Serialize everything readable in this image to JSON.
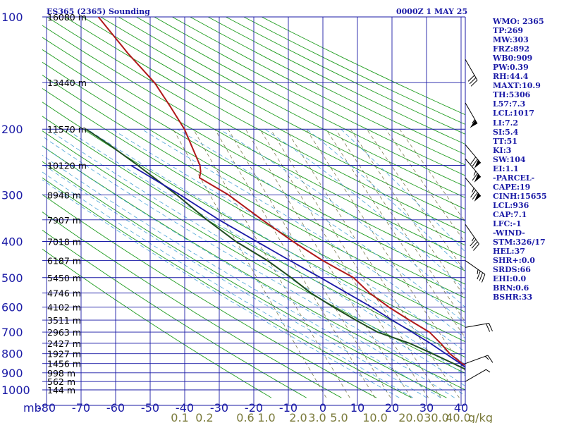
{
  "header": {
    "station": "ES365 (2365) Sounding",
    "time": "0000Z  1 MAY 25"
  },
  "colors": {
    "grid": "#1a1aa6",
    "dry_adiabat": "#1f9c1f",
    "moist_adiabat": "#4aa3d6",
    "mixing_ratio": "#6b6b3a",
    "temperature": "#b01a1a",
    "dewpoint": "#1f4d1f",
    "parcel": "#1a1aa6",
    "text": "#1a1aa6",
    "mixing_label": "#7a7a3a"
  },
  "indices": [
    "WMO: 2365",
    "TP:269",
    "MW:303",
    "FRZ:892",
    "WB0:909",
    "PW:0.39",
    "RH:44.4",
    "MAXT:10.9",
    "TH:5306",
    "L57:7.3",
    "LCL:1017",
    "LI:7.2",
    "SI:5.4",
    "TT:51",
    "KI:3",
    "SW:104",
    "EI:1.1",
    "-PARCEL-",
    "CAPE:19",
    "CINH:15655",
    "LCL:936",
    "CAP:7.1",
    "LFC:-1",
    "-WIND-",
    "STM:326/17",
    "HEL:37",
    "SHR+:0.0",
    "SRDS:66",
    "EHI:0.0",
    "BRN:0.6",
    "BSHR:33"
  ],
  "chart_data": {
    "type": "skew-t",
    "title": "ES365 (2365) Sounding",
    "subtitle": "0000Z  1 MAY 25",
    "pressure_axis": {
      "unit": "mb",
      "ticks": [
        "100",
        "200",
        "300",
        "400",
        "500",
        "600",
        "700",
        "800",
        "900",
        "1000"
      ],
      "range": [
        1000,
        100
      ],
      "scale": "log"
    },
    "temperature_axis": {
      "ticks": [
        "-80",
        "-70",
        "-60",
        "-50",
        "-40",
        "-30",
        "-20",
        "-10",
        "0",
        "10",
        "20",
        "30",
        "40"
      ],
      "range": [
        -80,
        40
      ]
    },
    "mixing_ratio_labels": [
      "0.1",
      "0.2",
      "0.6",
      "1.0",
      "2.0",
      "3.0",
      "5.0",
      "10.0",
      "20.0",
      "30.0",
      "40.0"
    ],
    "mixing_ratio_unit": "g/kg",
    "height_labels": [
      {
        "p": 1000,
        "label": "144 m"
      },
      {
        "p": 950,
        "label": "562 m"
      },
      {
        "p": 900,
        "label": "998 m"
      },
      {
        "p": 850,
        "label": "1456 m"
      },
      {
        "p": 800,
        "label": "1927 m"
      },
      {
        "p": 750,
        "label": "2427 m"
      },
      {
        "p": 700,
        "label": "2963 m"
      },
      {
        "p": 650,
        "label": "3511 m"
      },
      {
        "p": 600,
        "label": "4102 m"
      },
      {
        "p": 550,
        "label": "4746 m"
      },
      {
        "p": 500,
        "label": "5450 m"
      },
      {
        "p": 450,
        "label": "6187 m"
      },
      {
        "p": 400,
        "label": "7018 m"
      },
      {
        "p": 350,
        "label": "7907 m"
      },
      {
        "p": 300,
        "label": "8948 m"
      },
      {
        "p": 250,
        "label": "10120 m"
      },
      {
        "p": 200,
        "label": "11570 m"
      },
      {
        "p": 150,
        "label": "13440 m"
      },
      {
        "p": 100,
        "label": "16080 m"
      }
    ],
    "series": [
      {
        "name": "temperature",
        "points": [
          {
            "p": 1018,
            "t": 10.5
          },
          {
            "p": 1000,
            "t": 10.4
          },
          {
            "p": 950,
            "t": 11.0
          },
          {
            "p": 925,
            "t": 9.0
          },
          {
            "p": 880,
            "t": 4.6
          },
          {
            "p": 850,
            "t": 2.0
          },
          {
            "p": 800,
            "t": -0.5
          },
          {
            "p": 750,
            "t": -2.0
          },
          {
            "p": 700,
            "t": -4.0
          },
          {
            "p": 650,
            "t": -8.5
          },
          {
            "p": 600,
            "t": -13.0
          },
          {
            "p": 550,
            "t": -17.0
          },
          {
            "p": 500,
            "t": -20.0
          },
          {
            "p": 450,
            "t": -27.0
          },
          {
            "p": 400,
            "t": -33.5
          },
          {
            "p": 350,
            "t": -40.0
          },
          {
            "p": 300,
            "t": -47.0
          },
          {
            "p": 270,
            "t": -53.5
          },
          {
            "p": 260,
            "t": -52.5
          },
          {
            "p": 250,
            "t": -52.0
          },
          {
            "p": 200,
            "t": -52.5
          },
          {
            "p": 175,
            "t": -54.0
          },
          {
            "p": 150,
            "t": -56.0
          },
          {
            "p": 125,
            "t": -60.5
          },
          {
            "p": 100,
            "t": -65.0
          }
        ]
      },
      {
        "name": "dewpoint",
        "points": [
          {
            "p": 1018,
            "t": 7.0
          },
          {
            "p": 1000,
            "t": 6.5
          },
          {
            "p": 950,
            "t": 6.0
          },
          {
            "p": 900,
            "t": 4.0
          },
          {
            "p": 850,
            "t": -0.5
          },
          {
            "p": 800,
            "t": -5.5
          },
          {
            "p": 750,
            "t": -11.0
          },
          {
            "p": 700,
            "t": -19.0
          },
          {
            "p": 650,
            "t": -24.0
          },
          {
            "p": 600,
            "t": -29.0
          },
          {
            "p": 550,
            "t": -34.0
          },
          {
            "p": 500,
            "t": -38.0
          },
          {
            "p": 450,
            "t": -43.0
          },
          {
            "p": 400,
            "t": -50.0
          },
          {
            "p": 350,
            "t": -56.0
          },
          {
            "p": 300,
            "t": -62.0
          },
          {
            "p": 250,
            "t": -70.0
          },
          {
            "p": 220,
            "t": -76.0
          },
          {
            "p": 200,
            "t": -81.0
          }
        ]
      },
      {
        "name": "parcel",
        "points": [
          {
            "p": 1000,
            "t": 12.0
          },
          {
            "p": 936,
            "t": 5.5
          },
          {
            "p": 850,
            "t": 1.5
          },
          {
            "p": 750,
            "t": -5.0
          },
          {
            "p": 700,
            "t": -9.0
          },
          {
            "p": 650,
            "t": -13.5
          },
          {
            "p": 600,
            "t": -18.0
          },
          {
            "p": 550,
            "t": -23.5
          },
          {
            "p": 500,
            "t": -29.5
          },
          {
            "p": 450,
            "t": -36.5
          },
          {
            "p": 400,
            "t": -44.0
          },
          {
            "p": 350,
            "t": -52.5
          },
          {
            "p": 300,
            "t": -61.0
          },
          {
            "p": 250,
            "t": -72.0
          }
        ]
      }
    ],
    "wind_barbs": [
      {
        "p": 130,
        "dir": 210,
        "kt": 30
      },
      {
        "p": 170,
        "dir": 210,
        "kt": 55
      },
      {
        "p": 220,
        "dir": 220,
        "kt": 70
      },
      {
        "p": 240,
        "dir": 220,
        "kt": 65
      },
      {
        "p": 270,
        "dir": 220,
        "kt": 75
      },
      {
        "p": 360,
        "dir": 215,
        "kt": 35
      },
      {
        "p": 450,
        "dir": 235,
        "kt": 35
      },
      {
        "p": 680,
        "dir": 280,
        "kt": 20
      },
      {
        "p": 850,
        "dir": 290,
        "kt": 15
      },
      {
        "p": 950,
        "dir": 300,
        "kt": 5
      }
    ],
    "grid": true
  }
}
